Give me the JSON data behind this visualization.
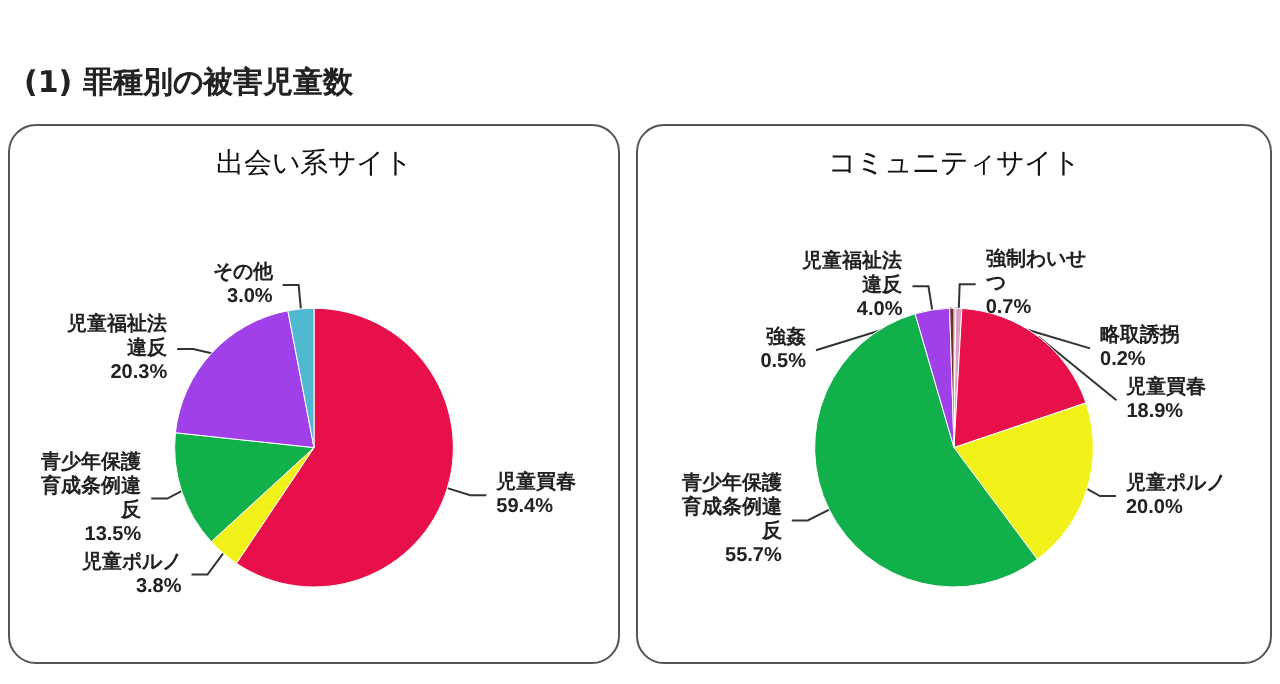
{
  "chart_data": [
    {
      "type": "pie",
      "title": "出会い系サイト",
      "annotations": [
        "(1) 罪種別の被害児童数"
      ],
      "categories": [
        "児童買春",
        "児童ポルノ",
        "青少年保護育成条例違反",
        "児童福祉法違反",
        "その他"
      ],
      "values": [
        59.4,
        3.8,
        13.5,
        20.3,
        3.0
      ],
      "value_labels": [
        "59.4%",
        "3.8%",
        "13.5%",
        "20.3%",
        "3.0%"
      ],
      "colors": [
        "#e8104a",
        "#f2f21a",
        "#12b04a",
        "#a040e8",
        "#50b8d0"
      ]
    },
    {
      "type": "pie",
      "title": "コミュニティサイト",
      "categories": [
        "略取誘拐",
        "強制わいせつ",
        "児童買春",
        "児童ポルノ",
        "青少年保護育成条例違反",
        "児童福祉法違反",
        "強姦"
      ],
      "values": [
        0.2,
        0.7,
        18.9,
        20.0,
        55.7,
        4.0,
        0.5
      ],
      "value_labels": [
        "0.2%",
        "0.7%",
        "18.9%",
        "20.0%",
        "55.7%",
        "4.0%",
        "0.5%"
      ],
      "colors": [
        "#803040",
        "#d8a0c0",
        "#e8104a",
        "#f2f21a",
        "#12b04a",
        "#a040e8",
        "#703030"
      ]
    }
  ]
}
